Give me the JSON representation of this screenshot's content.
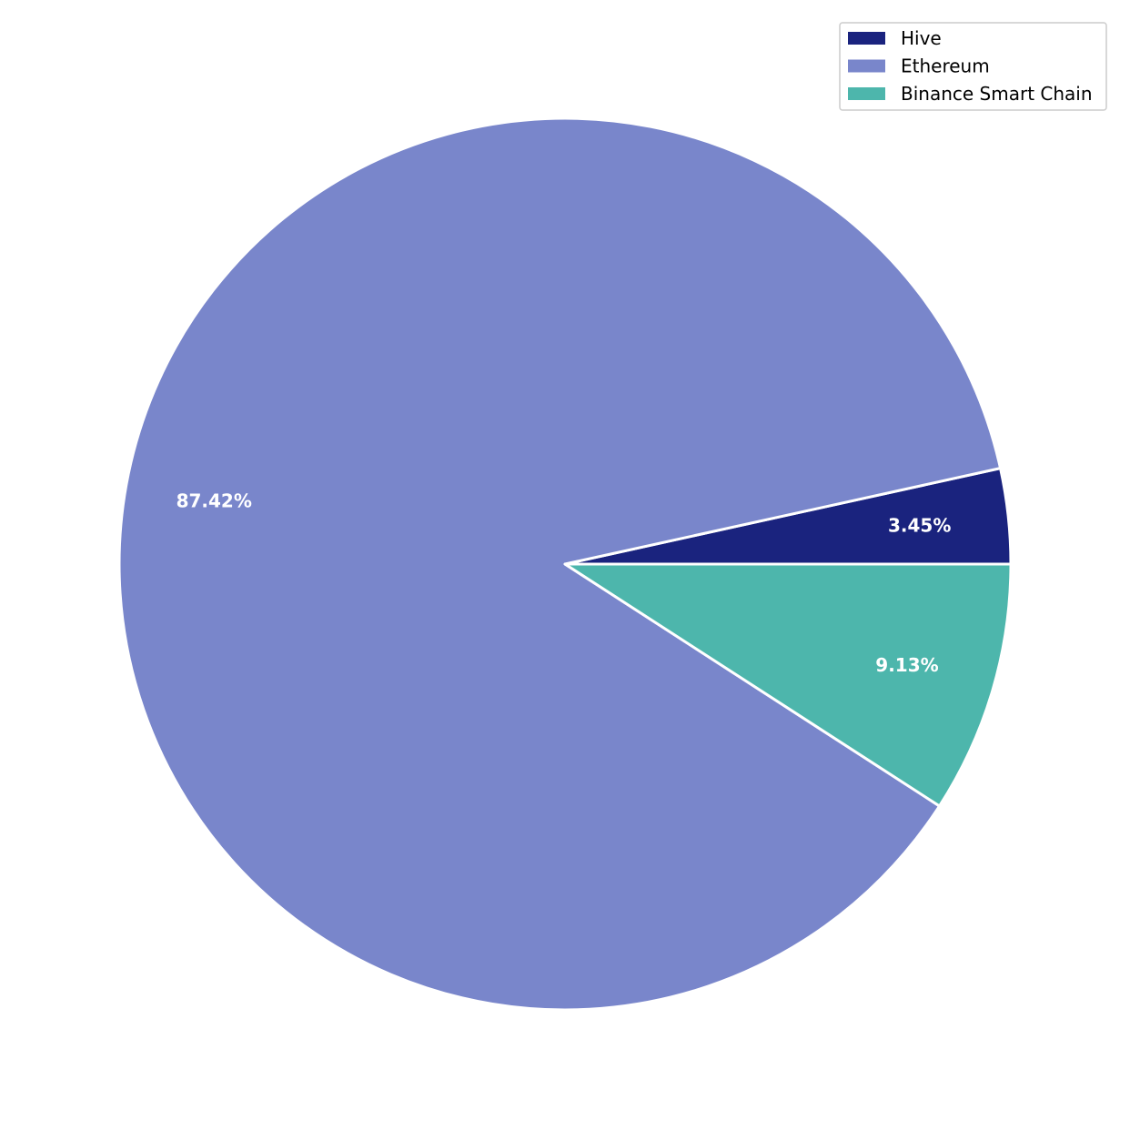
{
  "chart_data": {
    "type": "pie",
    "title": "",
    "start_angle_deg": 0,
    "direction": "counterclockwise",
    "legend_position": "top-right",
    "slices": [
      {
        "name": "Hive",
        "value": 3.45,
        "label": "3.45%",
        "color": "#1a237e"
      },
      {
        "name": "Ethereum",
        "value": 87.42,
        "label": "87.42%",
        "color": "#7986cb"
      },
      {
        "name": "Binance Smart Chain",
        "value": 9.13,
        "label": "9.13%",
        "color": "#4db6ac"
      }
    ]
  }
}
